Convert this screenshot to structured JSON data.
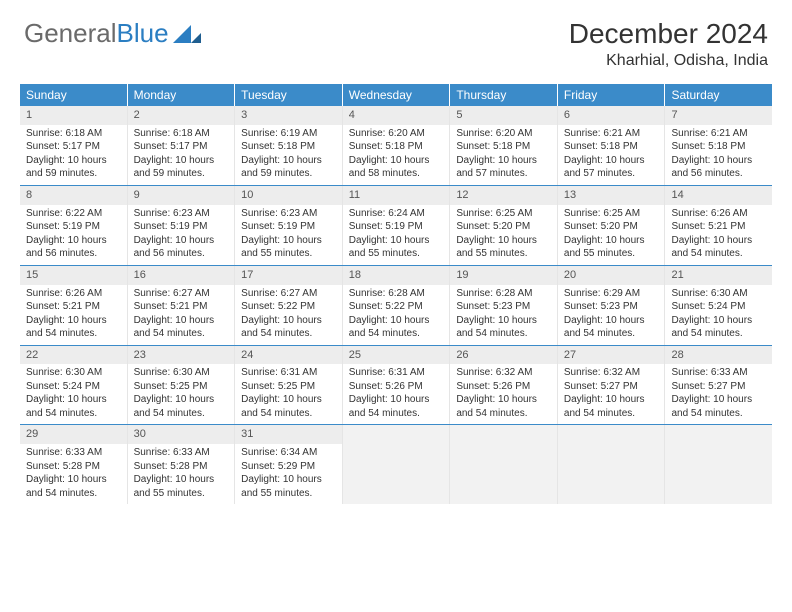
{
  "logo": {
    "text1": "General",
    "text2": "Blue"
  },
  "title": "December 2024",
  "location": "Kharhial, Odisha, India",
  "colors": {
    "headerBlue": "#3b8bc9",
    "logoBlue": "#2b7ec2",
    "logoGray": "#6a6a6a",
    "cellHeaderGray": "#ededed",
    "weekBorder": "#3b8bc9"
  },
  "dayNames": [
    "Sunday",
    "Monday",
    "Tuesday",
    "Wednesday",
    "Thursday",
    "Friday",
    "Saturday"
  ],
  "weeks": [
    [
      {
        "n": "1",
        "sr": "6:18 AM",
        "ss": "5:17 PM",
        "dl": "10 hours and 59 minutes."
      },
      {
        "n": "2",
        "sr": "6:18 AM",
        "ss": "5:17 PM",
        "dl": "10 hours and 59 minutes."
      },
      {
        "n": "3",
        "sr": "6:19 AM",
        "ss": "5:18 PM",
        "dl": "10 hours and 59 minutes."
      },
      {
        "n": "4",
        "sr": "6:20 AM",
        "ss": "5:18 PM",
        "dl": "10 hours and 58 minutes."
      },
      {
        "n": "5",
        "sr": "6:20 AM",
        "ss": "5:18 PM",
        "dl": "10 hours and 57 minutes."
      },
      {
        "n": "6",
        "sr": "6:21 AM",
        "ss": "5:18 PM",
        "dl": "10 hours and 57 minutes."
      },
      {
        "n": "7",
        "sr": "6:21 AM",
        "ss": "5:18 PM",
        "dl": "10 hours and 56 minutes."
      }
    ],
    [
      {
        "n": "8",
        "sr": "6:22 AM",
        "ss": "5:19 PM",
        "dl": "10 hours and 56 minutes."
      },
      {
        "n": "9",
        "sr": "6:23 AM",
        "ss": "5:19 PM",
        "dl": "10 hours and 56 minutes."
      },
      {
        "n": "10",
        "sr": "6:23 AM",
        "ss": "5:19 PM",
        "dl": "10 hours and 55 minutes."
      },
      {
        "n": "11",
        "sr": "6:24 AM",
        "ss": "5:19 PM",
        "dl": "10 hours and 55 minutes."
      },
      {
        "n": "12",
        "sr": "6:25 AM",
        "ss": "5:20 PM",
        "dl": "10 hours and 55 minutes."
      },
      {
        "n": "13",
        "sr": "6:25 AM",
        "ss": "5:20 PM",
        "dl": "10 hours and 55 minutes."
      },
      {
        "n": "14",
        "sr": "6:26 AM",
        "ss": "5:21 PM",
        "dl": "10 hours and 54 minutes."
      }
    ],
    [
      {
        "n": "15",
        "sr": "6:26 AM",
        "ss": "5:21 PM",
        "dl": "10 hours and 54 minutes."
      },
      {
        "n": "16",
        "sr": "6:27 AM",
        "ss": "5:21 PM",
        "dl": "10 hours and 54 minutes."
      },
      {
        "n": "17",
        "sr": "6:27 AM",
        "ss": "5:22 PM",
        "dl": "10 hours and 54 minutes."
      },
      {
        "n": "18",
        "sr": "6:28 AM",
        "ss": "5:22 PM",
        "dl": "10 hours and 54 minutes."
      },
      {
        "n": "19",
        "sr": "6:28 AM",
        "ss": "5:23 PM",
        "dl": "10 hours and 54 minutes."
      },
      {
        "n": "20",
        "sr": "6:29 AM",
        "ss": "5:23 PM",
        "dl": "10 hours and 54 minutes."
      },
      {
        "n": "21",
        "sr": "6:30 AM",
        "ss": "5:24 PM",
        "dl": "10 hours and 54 minutes."
      }
    ],
    [
      {
        "n": "22",
        "sr": "6:30 AM",
        "ss": "5:24 PM",
        "dl": "10 hours and 54 minutes."
      },
      {
        "n": "23",
        "sr": "6:30 AM",
        "ss": "5:25 PM",
        "dl": "10 hours and 54 minutes."
      },
      {
        "n": "24",
        "sr": "6:31 AM",
        "ss": "5:25 PM",
        "dl": "10 hours and 54 minutes."
      },
      {
        "n": "25",
        "sr": "6:31 AM",
        "ss": "5:26 PM",
        "dl": "10 hours and 54 minutes."
      },
      {
        "n": "26",
        "sr": "6:32 AM",
        "ss": "5:26 PM",
        "dl": "10 hours and 54 minutes."
      },
      {
        "n": "27",
        "sr": "6:32 AM",
        "ss": "5:27 PM",
        "dl": "10 hours and 54 minutes."
      },
      {
        "n": "28",
        "sr": "6:33 AM",
        "ss": "5:27 PM",
        "dl": "10 hours and 54 minutes."
      }
    ],
    [
      {
        "n": "29",
        "sr": "6:33 AM",
        "ss": "5:28 PM",
        "dl": "10 hours and 54 minutes."
      },
      {
        "n": "30",
        "sr": "6:33 AM",
        "ss": "5:28 PM",
        "dl": "10 hours and 55 minutes."
      },
      {
        "n": "31",
        "sr": "6:34 AM",
        "ss": "5:29 PM",
        "dl": "10 hours and 55 minutes."
      },
      null,
      null,
      null,
      null
    ]
  ],
  "labels": {
    "sunrise": "Sunrise:",
    "sunset": "Sunset:",
    "daylight": "Daylight:"
  }
}
